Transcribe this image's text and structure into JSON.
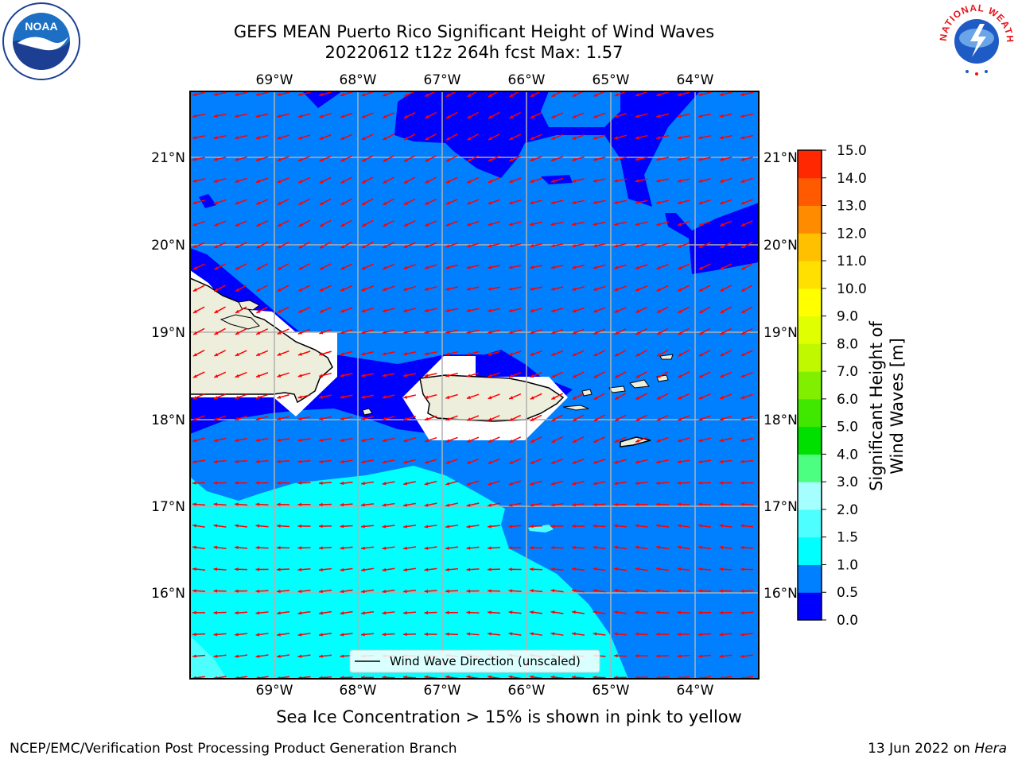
{
  "title": {
    "line1": "GEFS MEAN Puerto Rico Significant Height of Wind Waves",
    "line2": "20220612 t12z 264h fcst   Max: 1.57"
  },
  "map": {
    "lon_labels": [
      "69°W",
      "68°W",
      "67°W",
      "66°W",
      "65°W",
      "64°W"
    ],
    "lat_labels": [
      "21°N",
      "20°N",
      "19°N",
      "18°N",
      "17°N",
      "16°N"
    ],
    "legend_label": "Wind Wave Direction (unscaled)",
    "arrow_color": "#ff0000",
    "land_color": "#eeeedd",
    "fill_levels": {
      "0.0-0.5": "#0000ff",
      "0.5-1.0": "#0080ff",
      "1.0-1.5": "#00ffff",
      "1.5-2.0": "#4dffff"
    }
  },
  "colorbar": {
    "title": "Significant Height of Wind Waves [m]",
    "levels": [
      "0.0",
      "0.5",
      "1.0",
      "1.5",
      "2.0",
      "3.0",
      "4.0",
      "5.0",
      "6.0",
      "7.0",
      "8.0",
      "9.0",
      "10.0",
      "11.0",
      "12.0",
      "13.0",
      "14.0",
      "15.0"
    ],
    "colors": [
      "#0000ff",
      "#0080ff",
      "#00ffff",
      "#4dffff",
      "#a6ffff",
      "#4dff80",
      "#00e000",
      "#40e800",
      "#80f000",
      "#c0f800",
      "#e0ff00",
      "#ffff00",
      "#ffe000",
      "#ffc000",
      "#ff8c00",
      "#ff5a00",
      "#ff2800"
    ]
  },
  "footer": {
    "note": "Sea Ice Concentration > 15% is shown in pink to yellow",
    "left": "NCEP/EMC/Verification Post Processing Product Generation Branch",
    "right_prefix": "13 Jun 2022 on ",
    "right_host": "Hera"
  },
  "logos": {
    "noaa_text": "NOAA",
    "nws_text": "NATIONAL WEATHER SERVICE"
  }
}
